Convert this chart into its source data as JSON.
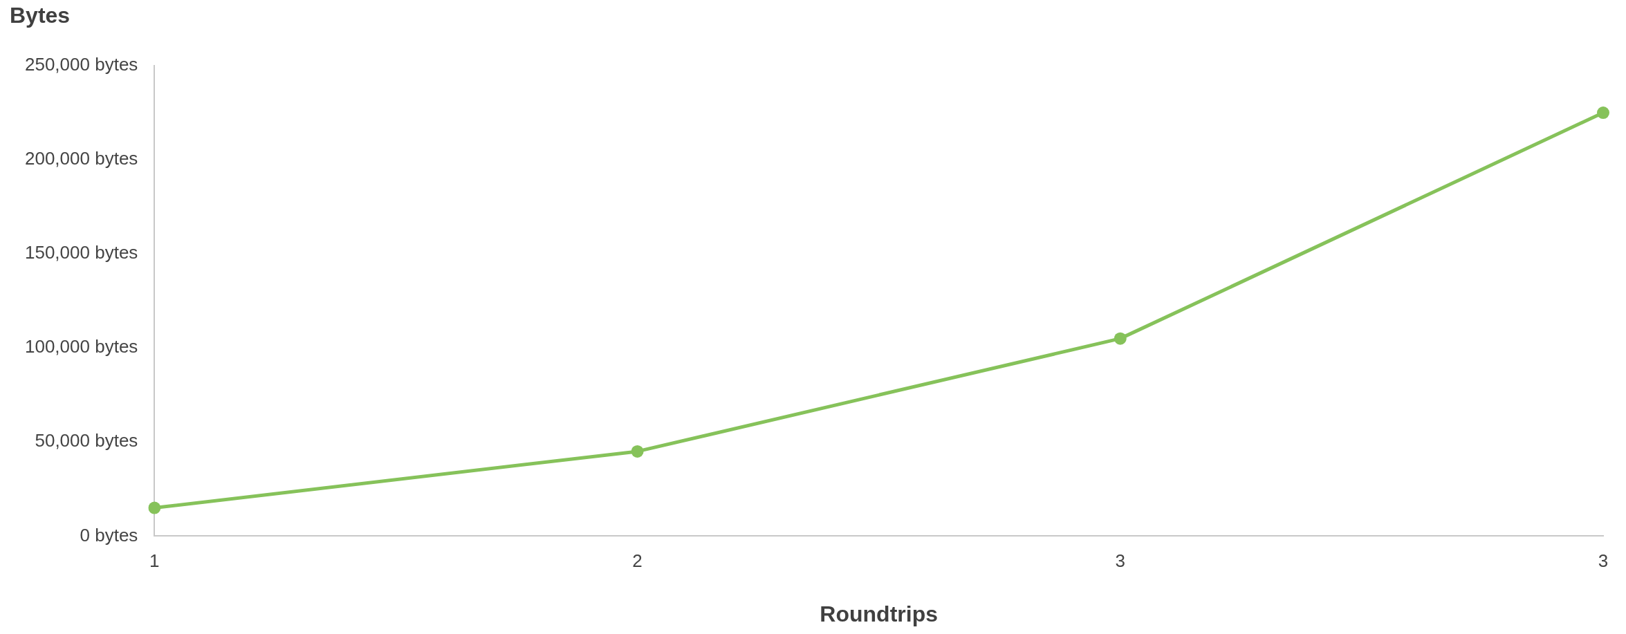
{
  "chart_data": {
    "type": "line",
    "ylabel": "Bytes",
    "xlabel": "Roundtrips",
    "categories": [
      "1",
      "2",
      "3",
      "3"
    ],
    "series": [
      {
        "color": "#86c25a",
        "values": [
          15000,
          45000,
          105000,
          225000
        ]
      }
    ],
    "ylim": [
      0,
      250000
    ],
    "yticks": [
      {
        "value": 0,
        "label": "0 bytes"
      },
      {
        "value": 50000,
        "label": "50,000 bytes"
      },
      {
        "value": 100000,
        "label": "100,000 bytes"
      },
      {
        "value": 150000,
        "label": "150,000 bytes"
      },
      {
        "value": 200000,
        "label": "200,000 bytes"
      },
      {
        "value": 250000,
        "label": "250,000 bytes"
      }
    ],
    "grid": false,
    "legend": false,
    "marker": "circle",
    "line_style": "solid"
  }
}
